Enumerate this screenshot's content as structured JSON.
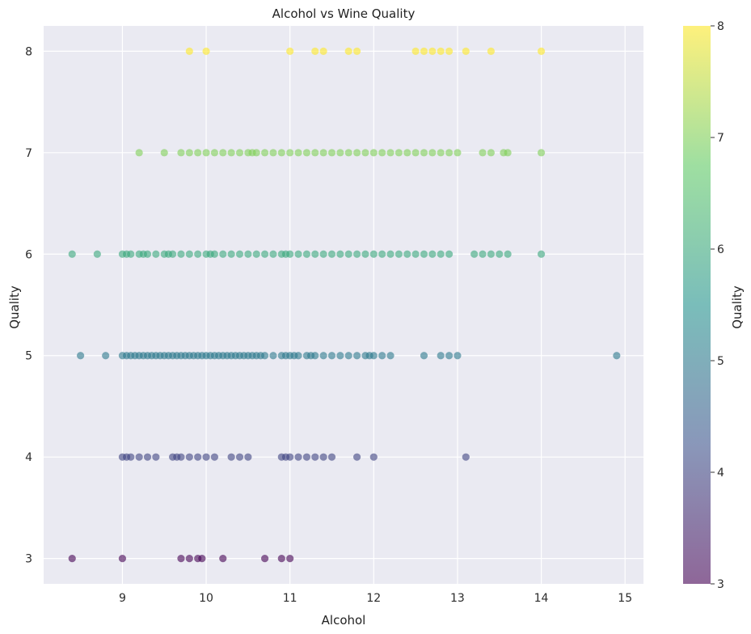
{
  "chart_data": {
    "type": "scatter",
    "title": "Alcohol vs Wine Quality",
    "xlabel": "Alcohol",
    "ylabel": "Quality",
    "xlim": [
      8.06,
      15.22
    ],
    "ylim": [
      2.75,
      8.25
    ],
    "xticks": [
      9,
      10,
      11,
      12,
      13,
      14,
      15
    ],
    "yticks": [
      3,
      4,
      5,
      6,
      7,
      8
    ],
    "grid": true,
    "colorbar": {
      "label": "Quality",
      "min": 3,
      "max": 8,
      "ticks": [
        3,
        4,
        5,
        6,
        7,
        8
      ],
      "colormap": "viridis",
      "colors": [
        "#440154",
        "#3b528b",
        "#21918c",
        "#5ec962",
        "#fde725"
      ]
    },
    "point_alpha": 0.6,
    "points_by_quality": {
      "3": [
        8.4,
        9.0,
        9.7,
        9.8,
        9.9,
        9.95,
        10.2,
        10.7,
        10.9,
        11.0
      ],
      "4": [
        9.0,
        9.05,
        9.1,
        9.2,
        9.3,
        9.4,
        9.6,
        9.65,
        9.7,
        9.8,
        9.9,
        10.0,
        10.1,
        10.3,
        10.4,
        10.5,
        10.9,
        10.95,
        11.0,
        11.1,
        11.2,
        11.3,
        11.4,
        11.5,
        11.8,
        12.0,
        13.1
      ],
      "5": [
        8.5,
        8.8,
        9.0,
        9.05,
        9.1,
        9.15,
        9.2,
        9.25,
        9.3,
        9.35,
        9.4,
        9.45,
        9.5,
        9.55,
        9.6,
        9.65,
        9.7,
        9.75,
        9.8,
        9.85,
        9.9,
        9.95,
        10.0,
        10.05,
        10.1,
        10.15,
        10.2,
        10.25,
        10.3,
        10.35,
        10.4,
        10.45,
        10.5,
        10.55,
        10.6,
        10.65,
        10.7,
        10.8,
        10.9,
        10.95,
        11.0,
        11.05,
        11.1,
        11.2,
        11.25,
        11.3,
        11.4,
        11.5,
        11.6,
        11.7,
        11.8,
        11.9,
        11.95,
        12.0,
        12.1,
        12.2,
        12.6,
        12.8,
        12.9,
        13.0,
        14.9
      ],
      "6": [
        8.4,
        8.7,
        9.0,
        9.05,
        9.1,
        9.2,
        9.25,
        9.3,
        9.4,
        9.5,
        9.55,
        9.6,
        9.7,
        9.8,
        9.9,
        10.0,
        10.05,
        10.1,
        10.2,
        10.3,
        10.4,
        10.5,
        10.6,
        10.7,
        10.8,
        10.9,
        10.95,
        11.0,
        11.1,
        11.2,
        11.3,
        11.4,
        11.5,
        11.6,
        11.7,
        11.8,
        11.9,
        12.0,
        12.1,
        12.2,
        12.3,
        12.4,
        12.5,
        12.6,
        12.7,
        12.8,
        12.9,
        13.2,
        13.3,
        13.4,
        13.5,
        13.6,
        14.0
      ],
      "7": [
        9.2,
        9.5,
        9.7,
        9.8,
        9.9,
        10.0,
        10.1,
        10.2,
        10.3,
        10.4,
        10.5,
        10.55,
        10.6,
        10.7,
        10.8,
        10.9,
        11.0,
        11.1,
        11.2,
        11.3,
        11.4,
        11.5,
        11.6,
        11.7,
        11.8,
        11.9,
        12.0,
        12.1,
        12.2,
        12.3,
        12.4,
        12.5,
        12.6,
        12.7,
        12.8,
        12.9,
        13.0,
        13.3,
        13.4,
        13.55,
        13.6,
        14.0
      ],
      "8": [
        9.8,
        10.0,
        11.0,
        11.3,
        11.4,
        11.7,
        11.8,
        12.5,
        12.6,
        12.7,
        12.8,
        12.9,
        13.1,
        13.4,
        14.0
      ]
    }
  }
}
